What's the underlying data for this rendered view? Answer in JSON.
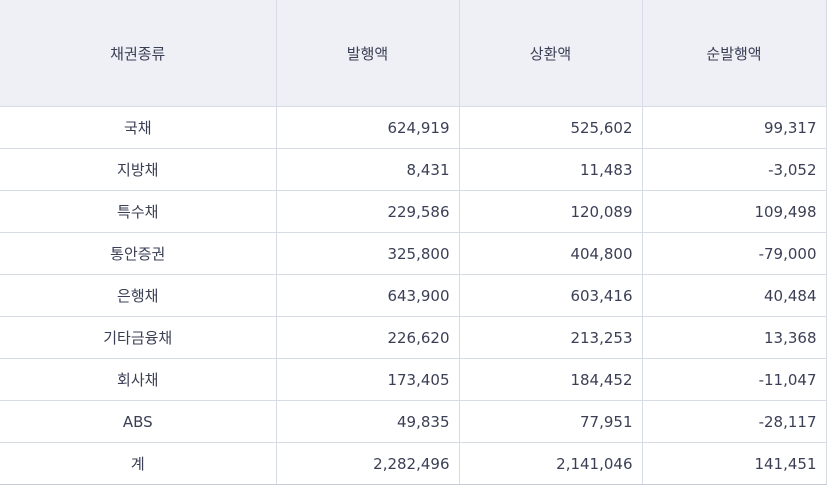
{
  "table": {
    "headers": [
      "채권종류",
      "발행액",
      "상환액",
      "순발행액"
    ],
    "rows": [
      {
        "type": "국채",
        "issued": "624,919",
        "redeemed": "525,602",
        "net": "99,317"
      },
      {
        "type": "지방채",
        "issued": "8,431",
        "redeemed": "11,483",
        "net": "-3,052"
      },
      {
        "type": "특수채",
        "issued": "229,586",
        "redeemed": "120,089",
        "net": "109,498"
      },
      {
        "type": "통안증권",
        "issued": "325,800",
        "redeemed": "404,800",
        "net": "-79,000"
      },
      {
        "type": "은행채",
        "issued": "643,900",
        "redeemed": "603,416",
        "net": "40,484"
      },
      {
        "type": "기타금융채",
        "issued": "226,620",
        "redeemed": "213,253",
        "net": "13,368"
      },
      {
        "type": "회사채",
        "issued": "173,405",
        "redeemed": "184,452",
        "net": "-11,047"
      },
      {
        "type": "ABS",
        "issued": "49,835",
        "redeemed": "77,951",
        "net": "-28,117"
      },
      {
        "type": "계",
        "issued": "2,282,496",
        "redeemed": "2,141,046",
        "net": "141,451"
      }
    ]
  },
  "colors": {
    "header_bg": "#eef0f5",
    "text": "#3b3f55",
    "border": "#d7dbe6"
  }
}
